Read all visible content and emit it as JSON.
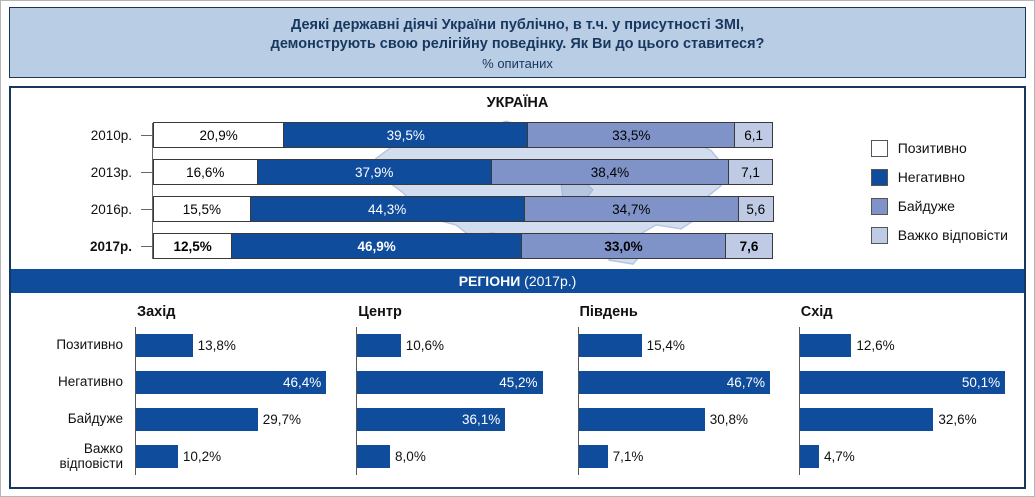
{
  "header": {
    "line1": "Деякі державні діячі України публічно, в т.ч. у присутності ЗМІ,",
    "line2": "демонструють свою релігійну поведінку. Як Ви до цього ставитеся?",
    "subtitle": "% опитаних"
  },
  "colors": {
    "band_bg": "#b9cde4",
    "border_navy": "#17375e",
    "bar_navy": "#0f4c9c",
    "bar_slate": "#8093c8",
    "bar_light": "#bfcbe4",
    "bar_white": "#ffffff",
    "map_fill": "#d2ddef"
  },
  "legend": {
    "items": [
      {
        "label": "Позитивно",
        "color": "#ffffff"
      },
      {
        "label": "Негативно",
        "color": "#0f4c9c"
      },
      {
        "label": "Байдуже",
        "color": "#8093c8"
      },
      {
        "label": "Важко відповісти",
        "color": "#bfcbe4"
      }
    ]
  },
  "ukraine": {
    "title": "УКРАЇНА",
    "rows": [
      {
        "year": "2010р.",
        "bold": false,
        "values": [
          20.9,
          39.5,
          33.5,
          6.1
        ],
        "labels": [
          "20,9%",
          "39,5%",
          "33,5%",
          "6,1"
        ]
      },
      {
        "year": "2013р.",
        "bold": false,
        "values": [
          16.6,
          37.9,
          38.4,
          7.1
        ],
        "labels": [
          "16,6%",
          "37,9%",
          "38,4%",
          "7,1"
        ]
      },
      {
        "year": "2016р.",
        "bold": false,
        "values": [
          15.5,
          44.3,
          34.7,
          5.6
        ],
        "labels": [
          "15,5%",
          "44,3%",
          "34,7%",
          "5,6"
        ]
      },
      {
        "year": "2017р.",
        "bold": true,
        "values": [
          12.5,
          46.9,
          33.0,
          7.6
        ],
        "labels": [
          "12,5%",
          "46,9%",
          "33,0%",
          "7,6"
        ]
      }
    ]
  },
  "regions": {
    "header": "РЕГІОНИ",
    "header_suffix": " (2017р.)",
    "row_labels": [
      "Позитивно",
      "Негативно",
      "Байдуже",
      "Важко відповісти"
    ],
    "inside_threshold": 35,
    "groups": [
      {
        "name": "Захід",
        "values": [
          13.8,
          46.4,
          29.7,
          10.2
        ],
        "labels": [
          "13,8%",
          "46,4%",
          "29,7%",
          "10,2%"
        ]
      },
      {
        "name": "Центр",
        "values": [
          10.6,
          45.2,
          36.1,
          8.0
        ],
        "labels": [
          "10,6%",
          "45,2%",
          "36,1%",
          "8,0%"
        ]
      },
      {
        "name": "Південь",
        "values": [
          15.4,
          46.7,
          30.8,
          7.1
        ],
        "labels": [
          "15,4%",
          "46,7%",
          "30,8%",
          "7,1%"
        ]
      },
      {
        "name": "Схід",
        "values": [
          12.6,
          50.1,
          32.6,
          4.7
        ],
        "labels": [
          "12,6%",
          "50,1%",
          "32,6%",
          "4,7%"
        ]
      }
    ]
  },
  "chart_data": [
    {
      "type": "bar",
      "subtype": "horizontal-stacked",
      "title": "УКРАЇНА",
      "categories": [
        "2010р.",
        "2013р.",
        "2016р.",
        "2017р."
      ],
      "series": [
        {
          "name": "Позитивно",
          "values": [
            20.9,
            16.6,
            15.5,
            12.5
          ]
        },
        {
          "name": "Негативно",
          "values": [
            39.5,
            37.9,
            44.3,
            46.9
          ]
        },
        {
          "name": "Байдуже",
          "values": [
            33.5,
            38.4,
            34.7,
            33.0
          ]
        },
        {
          "name": "Важко відповісти",
          "values": [
            6.1,
            7.1,
            5.6,
            7.6
          ]
        }
      ],
      "xlim": [
        0,
        100
      ],
      "unit": "%",
      "legend_position": "right",
      "grid": false
    },
    {
      "type": "bar",
      "subtype": "horizontal-grouped",
      "title": "РЕГІОНИ (2017р.)",
      "categories": [
        "Позитивно",
        "Негативно",
        "Байдуже",
        "Важко відповісти"
      ],
      "series": [
        {
          "name": "Захід",
          "values": [
            13.8,
            46.4,
            29.7,
            10.2
          ]
        },
        {
          "name": "Центр",
          "values": [
            10.6,
            45.2,
            36.1,
            8.0
          ]
        },
        {
          "name": "Південь",
          "values": [
            15.4,
            46.7,
            30.8,
            7.1
          ]
        },
        {
          "name": "Схід",
          "values": [
            12.6,
            50.1,
            32.6,
            4.7
          ]
        }
      ],
      "unit": "%",
      "grid": false
    }
  ]
}
